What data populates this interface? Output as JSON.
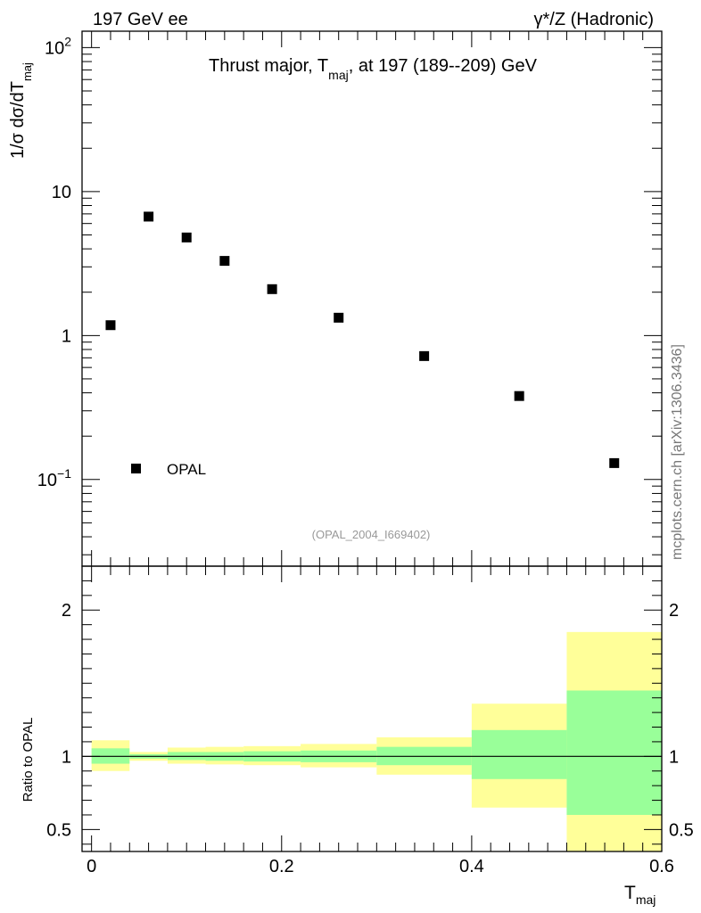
{
  "header": {
    "left": "197 GeV ee",
    "right_sup": "γ*/Z (Hadronic)"
  },
  "chart_data": [
    {
      "type": "scatter",
      "panel": "main",
      "title": "Thrust major, T_maj, at 197 (189--209) GeV",
      "title_parts": {
        "pre": "Thrust major, T",
        "sub": "maj",
        "post": ", at 197 (189--209) GeV"
      },
      "ylabel_parts": {
        "pre": "1/σ  dσ/dT",
        "sub": "maj"
      },
      "yscale": "log",
      "ylim": [
        0.025,
        130
      ],
      "xlim": [
        -0.01,
        0.6
      ],
      "y_ticks": [
        {
          "value": 0.1,
          "label_base": "10",
          "label_exp": "−1"
        },
        {
          "value": 1,
          "label_base": "1",
          "label_exp": ""
        },
        {
          "value": 10,
          "label_base": "10",
          "label_exp": ""
        },
        {
          "value": 100,
          "label_base": "10",
          "label_exp": "2"
        }
      ],
      "series": [
        {
          "name": "OPAL",
          "marker": "square",
          "color": "#000000",
          "points": [
            {
              "x": 0.02,
              "y": 1.18
            },
            {
              "x": 0.06,
              "y": 6.7
            },
            {
              "x": 0.1,
              "y": 4.8
            },
            {
              "x": 0.14,
              "y": 3.3
            },
            {
              "x": 0.19,
              "y": 2.1
            },
            {
              "x": 0.26,
              "y": 1.33
            },
            {
              "x": 0.35,
              "y": 0.72
            },
            {
              "x": 0.45,
              "y": 0.38
            },
            {
              "x": 0.55,
              "y": 0.13
            }
          ]
        }
      ],
      "legend": {
        "position": "bottom-left",
        "entries": [
          "OPAL"
        ]
      },
      "annotation": "(OPAL_2004_I669402)",
      "side_label": "mcplots.cern.ch [arXiv:1306.3436]"
    },
    {
      "type": "area",
      "panel": "ratio",
      "ylabel": "Ratio to OPAL",
      "xlabel_parts": {
        "pre": "T",
        "sub": "maj"
      },
      "xlim": [
        -0.01,
        0.6
      ],
      "ylim": [
        0.35,
        2.3
      ],
      "reference_line": 1,
      "x_ticks": [
        {
          "value": 0,
          "label": "0"
        },
        {
          "value": 0.2,
          "label": "0.2"
        },
        {
          "value": 0.4,
          "label": "0.4"
        },
        {
          "value": 0.6,
          "label": "0.6"
        }
      ],
      "y_ticks": [
        {
          "value": 0.5,
          "label": "0.5"
        },
        {
          "value": 1,
          "label": "1"
        },
        {
          "value": 2,
          "label": "2"
        }
      ],
      "bands": [
        {
          "x0": 0.0,
          "x1": 0.04,
          "outer": [
            0.9,
            1.11
          ],
          "inner": [
            0.95,
            1.055
          ]
        },
        {
          "x0": 0.04,
          "x1": 0.08,
          "outer": [
            0.97,
            1.03
          ],
          "inner": [
            0.985,
            1.015
          ]
        },
        {
          "x0": 0.08,
          "x1": 0.12,
          "outer": [
            0.95,
            1.06
          ],
          "inner": [
            0.975,
            1.03
          ]
        },
        {
          "x0": 0.12,
          "x1": 0.16,
          "outer": [
            0.945,
            1.065
          ],
          "inner": [
            0.97,
            1.03
          ]
        },
        {
          "x0": 0.16,
          "x1": 0.22,
          "outer": [
            0.94,
            1.07
          ],
          "inner": [
            0.965,
            1.035
          ]
        },
        {
          "x0": 0.22,
          "x1": 0.3,
          "outer": [
            0.925,
            1.085
          ],
          "inner": [
            0.96,
            1.04
          ]
        },
        {
          "x0": 0.3,
          "x1": 0.4,
          "outer": [
            0.875,
            1.13
          ],
          "inner": [
            0.94,
            1.065
          ]
        },
        {
          "x0": 0.4,
          "x1": 0.5,
          "outer": [
            0.65,
            1.36
          ],
          "inner": [
            0.845,
            1.18
          ]
        },
        {
          "x0": 0.5,
          "x1": 0.6,
          "outer": [
            0.35,
            1.85
          ],
          "inner": [
            0.6,
            1.45
          ]
        }
      ],
      "band_colors": {
        "outer": "#ffff99",
        "inner": "#99ff99"
      }
    }
  ]
}
